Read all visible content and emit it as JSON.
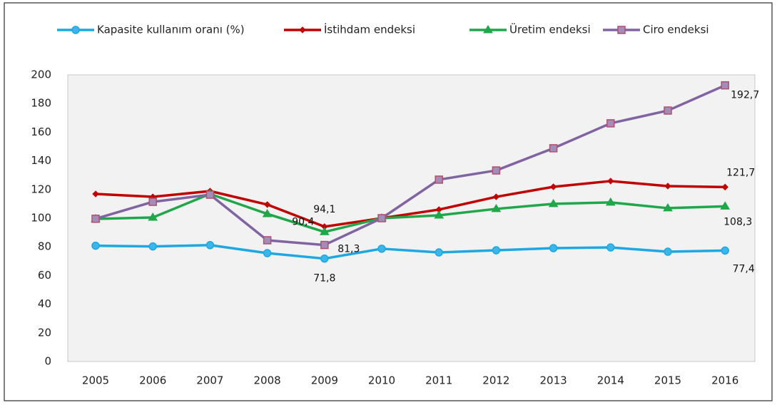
{
  "chart_data": {
    "type": "line",
    "categories": [
      "2005",
      "2006",
      "2007",
      "2008",
      "2009",
      "2010",
      "2011",
      "2012",
      "2013",
      "2014",
      "2015",
      "2016"
    ],
    "series": [
      {
        "name": "Kapasite kullanım oranı (%)",
        "color": "#1ea7e1",
        "marker": "circle",
        "values": [
          80.8,
          80.3,
          81.2,
          75.6,
          71.8,
          78.7,
          76.1,
          77.6,
          79.1,
          79.6,
          76.6,
          77.4
        ],
        "value_labels": [
          null,
          null,
          null,
          null,
          "71,8",
          null,
          null,
          null,
          null,
          null,
          null,
          "77,4"
        ]
      },
      {
        "name": "İstihdam endeksi",
        "color": "#c00000",
        "marker": "diamond",
        "values": [
          116.9,
          114.9,
          118.9,
          109.5,
          94.1,
          100,
          106,
          114.9,
          121.9,
          125.9,
          122.4,
          121.7
        ],
        "value_labels": [
          null,
          null,
          null,
          null,
          "94,1",
          null,
          null,
          null,
          null,
          null,
          null,
          "121,7"
        ]
      },
      {
        "name": "Üretim endeksi",
        "color": "#1fa74a",
        "marker": "triangle",
        "values": [
          99.5,
          100.5,
          116.9,
          103,
          90.4,
          100,
          102,
          106.5,
          110,
          111,
          107,
          108.3
        ],
        "value_labels": [
          null,
          null,
          null,
          null,
          "90,4",
          null,
          null,
          null,
          null,
          null,
          null,
          "108,3"
        ]
      },
      {
        "name": "Ciro endeksi",
        "color": "#8064a2",
        "marker": "square",
        "values": [
          99.6,
          111.4,
          116.4,
          84.6,
          81.3,
          100,
          126.9,
          133.3,
          148.8,
          166.2,
          175.1,
          192.7
        ],
        "value_labels": [
          null,
          null,
          null,
          null,
          "81,3",
          null,
          null,
          null,
          null,
          null,
          null,
          "192,7"
        ]
      }
    ],
    "ylim": [
      0,
      200
    ],
    "yticks": [
      0,
      20,
      40,
      60,
      80,
      100,
      120,
      140,
      160,
      180,
      200
    ],
    "grid": false,
    "legend": "top"
  }
}
